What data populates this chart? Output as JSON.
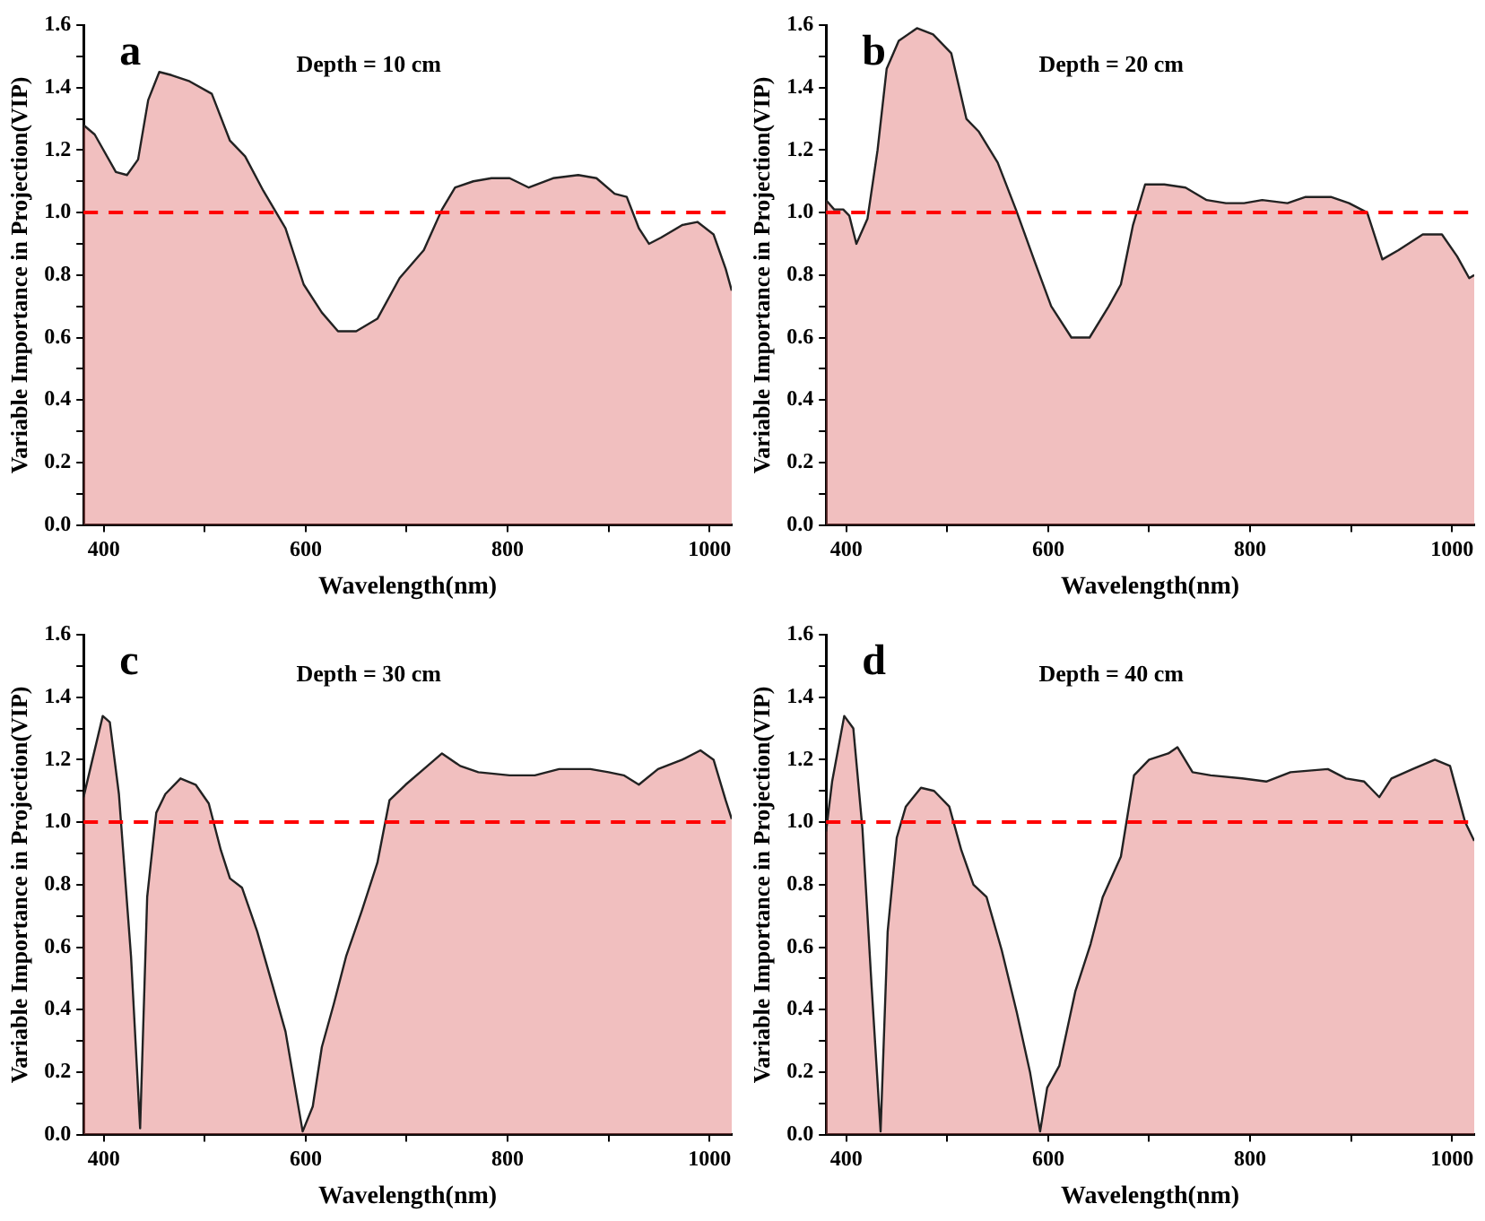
{
  "chart_data": [
    {
      "type": "area",
      "annotations": [
        "a",
        "Depth = 10 cm"
      ],
      "xlabel": "Wavelength(nm)",
      "ylabel": "Variable Importance in Projection(VIP)",
      "xlim": [
        380,
        1022
      ],
      "ylim": [
        0,
        1.6
      ],
      "xticks": [
        400,
        {
          "value": 500,
          "label": null
        },
        600,
        {
          "value": 700,
          "label": null
        },
        800,
        {
          "value": 900,
          "label": null
        },
        1000
      ],
      "yticks": [
        {
          "value": 0,
          "label": "0.0"
        },
        {
          "value": 0.1,
          "label": null
        },
        0.2,
        {
          "value": 0.3,
          "label": null
        },
        0.4,
        {
          "value": 0.5,
          "label": null
        },
        0.6,
        {
          "value": 0.7,
          "label": null
        },
        0.8,
        {
          "value": 0.9,
          "label": null
        },
        {
          "value": 1,
          "label": "1.0"
        },
        {
          "value": 1.1,
          "label": null
        },
        1.2,
        {
          "value": 1.3,
          "label": null
        },
        1.4,
        {
          "value": 1.5,
          "label": null
        },
        1.6
      ],
      "grid": false,
      "legend": false,
      "ref_lines": [
        {
          "axis": "y",
          "value": 1,
          "color": "#ff0000",
          "line_style": "dashed"
        }
      ],
      "series": [
        {
          "color": "#e07070",
          "x": [
            380,
            391,
            412,
            423,
            434,
            444,
            455,
            467,
            485,
            507,
            525,
            540,
            558,
            580,
            598,
            616,
            632,
            650,
            671,
            693,
            717,
            735,
            748,
            766,
            784,
            802,
            821,
            845,
            870,
            888,
            906,
            918,
            930,
            940,
            952,
            973,
            988,
            1004,
            1016,
            1022
          ],
          "values": [
            1.28,
            1.25,
            1.13,
            1.12,
            1.17,
            1.36,
            1.45,
            1.44,
            1.42,
            1.38,
            1.23,
            1.18,
            1.07,
            0.95,
            0.77,
            0.68,
            0.62,
            0.62,
            0.66,
            0.79,
            0.88,
            1.01,
            1.08,
            1.1,
            1.11,
            1.11,
            1.08,
            1.11,
            1.12,
            1.11,
            1.06,
            1.05,
            0.95,
            0.9,
            0.92,
            0.96,
            0.97,
            0.93,
            0.82,
            0.75
          ]
        }
      ]
    },
    {
      "type": "area",
      "annotations": [
        "b",
        "Depth = 20 cm"
      ],
      "xlabel": "Wavelength(nm)",
      "ylabel": "Variable Importance in Projection(VIP)",
      "xlim": [
        380,
        1022
      ],
      "ylim": [
        0,
        1.6
      ],
      "xticks": [
        400,
        {
          "value": 500,
          "label": null
        },
        600,
        {
          "value": 700,
          "label": null
        },
        800,
        {
          "value": 900,
          "label": null
        },
        1000
      ],
      "yticks": [
        {
          "value": 0,
          "label": "0.0"
        },
        {
          "value": 0.1,
          "label": null
        },
        0.2,
        {
          "value": 0.3,
          "label": null
        },
        0.4,
        {
          "value": 0.5,
          "label": null
        },
        0.6,
        {
          "value": 0.7,
          "label": null
        },
        0.8,
        {
          "value": 0.9,
          "label": null
        },
        {
          "value": 1,
          "label": "1.0"
        },
        {
          "value": 1.1,
          "label": null
        },
        1.2,
        {
          "value": 1.3,
          "label": null
        },
        1.4,
        {
          "value": 1.5,
          "label": null
        },
        1.6
      ],
      "grid": false,
      "legend": false,
      "ref_lines": [
        {
          "axis": "y",
          "value": 1,
          "color": "#ff0000",
          "line_style": "dashed"
        }
      ],
      "series": [
        {
          "color": "#e07070",
          "x": [
            380,
            388,
            397,
            403,
            410,
            421,
            431,
            440,
            452,
            470,
            486,
            504,
            519,
            531,
            550,
            568,
            587,
            603,
            623,
            641,
            660,
            672,
            684,
            696,
            715,
            736,
            757,
            776,
            794,
            812,
            837,
            855,
            880,
            898,
            916,
            931,
            947,
            971,
            990,
            1005,
            1017,
            1022
          ],
          "values": [
            1.04,
            1.01,
            1.01,
            0.99,
            0.9,
            0.98,
            1.2,
            1.46,
            1.55,
            1.59,
            1.57,
            1.51,
            1.3,
            1.26,
            1.16,
            1.01,
            0.84,
            0.7,
            0.6,
            0.6,
            0.7,
            0.77,
            0.96,
            1.09,
            1.09,
            1.08,
            1.04,
            1.03,
            1.03,
            1.04,
            1.03,
            1.05,
            1.05,
            1.03,
            1.0,
            0.85,
            0.88,
            0.93,
            0.93,
            0.86,
            0.79,
            0.8
          ]
        }
      ]
    },
    {
      "type": "area",
      "annotations": [
        "c",
        "Depth = 30 cm"
      ],
      "xlabel": "Wavelength(nm)",
      "ylabel": "Variable Importance in Projection(VIP)",
      "xlim": [
        380,
        1022
      ],
      "ylim": [
        0,
        1.6
      ],
      "xticks": [
        400,
        {
          "value": 500,
          "label": null
        },
        600,
        {
          "value": 700,
          "label": null
        },
        800,
        {
          "value": 900,
          "label": null
        },
        1000
      ],
      "yticks": [
        {
          "value": 0,
          "label": "0.0"
        },
        {
          "value": 0.1,
          "label": null
        },
        0.2,
        {
          "value": 0.3,
          "label": null
        },
        0.4,
        {
          "value": 0.5,
          "label": null
        },
        0.6,
        {
          "value": 0.7,
          "label": null
        },
        0.8,
        {
          "value": 0.9,
          "label": null
        },
        {
          "value": 1,
          "label": "1.0"
        },
        {
          "value": 1.1,
          "label": null
        },
        1.2,
        {
          "value": 1.3,
          "label": null
        },
        1.4,
        {
          "value": 1.5,
          "label": null
        },
        1.6
      ],
      "grid": false,
      "legend": false,
      "ref_lines": [
        {
          "axis": "y",
          "value": 1,
          "color": "#ff0000",
          "line_style": "dashed"
        }
      ],
      "series": [
        {
          "color": "#e07070",
          "x": [
            380,
            388,
            399,
            406,
            415,
            427,
            436,
            443,
            452,
            461,
            476,
            491,
            504,
            516,
            525,
            537,
            552,
            567,
            580,
            589,
            597,
            607,
            616,
            628,
            640,
            656,
            671,
            683,
            699,
            717,
            735,
            753,
            771,
            802,
            827,
            851,
            882,
            900,
            915,
            930,
            949,
            973,
            991,
            1004,
            1016,
            1022
          ],
          "values": [
            1.08,
            1.19,
            1.34,
            1.32,
            1.09,
            0.57,
            0.02,
            0.76,
            1.03,
            1.09,
            1.14,
            1.12,
            1.06,
            0.91,
            0.82,
            0.79,
            0.65,
            0.48,
            0.33,
            0.16,
            0.01,
            0.09,
            0.28,
            0.42,
            0.57,
            0.72,
            0.87,
            1.07,
            1.12,
            1.17,
            1.22,
            1.18,
            1.16,
            1.15,
            1.15,
            1.17,
            1.17,
            1.16,
            1.15,
            1.12,
            1.17,
            1.2,
            1.23,
            1.2,
            1.07,
            1.01
          ]
        }
      ]
    },
    {
      "type": "area",
      "annotations": [
        "d",
        "Depth = 40 cm"
      ],
      "xlabel": "Wavelength(nm)",
      "ylabel": "Variable Importance in Projection(VIP)",
      "xlim": [
        380,
        1022
      ],
      "ylim": [
        0,
        1.6
      ],
      "xticks": [
        400,
        {
          "value": 500,
          "label": null
        },
        600,
        {
          "value": 700,
          "label": null
        },
        800,
        {
          "value": 900,
          "label": null
        },
        1000
      ],
      "yticks": [
        {
          "value": 0,
          "label": "0.0"
        },
        {
          "value": 0.1,
          "label": null
        },
        0.2,
        {
          "value": 0.3,
          "label": null
        },
        0.4,
        {
          "value": 0.5,
          "label": null
        },
        0.6,
        {
          "value": 0.7,
          "label": null
        },
        0.8,
        {
          "value": 0.9,
          "label": null
        },
        {
          "value": 1,
          "label": "1.0"
        },
        {
          "value": 1.1,
          "label": null
        },
        1.2,
        {
          "value": 1.3,
          "label": null
        },
        1.4,
        {
          "value": 1.5,
          "label": null
        },
        1.6
      ],
      "grid": false,
      "legend": false,
      "ref_lines": [
        {
          "axis": "y",
          "value": 1,
          "color": "#ff0000",
          "line_style": "dashed"
        }
      ],
      "series": [
        {
          "color": "#e07070",
          "x": [
            380,
            386,
            398,
            407,
            416,
            425,
            434,
            441,
            450,
            459,
            474,
            487,
            502,
            514,
            526,
            539,
            554,
            569,
            582,
            592,
            599,
            611,
            627,
            642,
            654,
            672,
            685,
            700,
            719,
            728,
            743,
            761,
            792,
            816,
            840,
            877,
            895,
            913,
            928,
            940,
            961,
            983,
            998,
            1013,
            1022
          ],
          "values": [
            0.97,
            1.13,
            1.34,
            1.3,
            0.98,
            0.48,
            0.01,
            0.65,
            0.95,
            1.05,
            1.11,
            1.1,
            1.05,
            0.91,
            0.8,
            0.76,
            0.59,
            0.39,
            0.2,
            0.01,
            0.15,
            0.22,
            0.46,
            0.61,
            0.76,
            0.89,
            1.15,
            1.2,
            1.22,
            1.24,
            1.16,
            1.15,
            1.14,
            1.13,
            1.16,
            1.17,
            1.14,
            1.13,
            1.08,
            1.14,
            1.17,
            1.2,
            1.18,
            1.0,
            0.94
          ]
        }
      ]
    }
  ]
}
